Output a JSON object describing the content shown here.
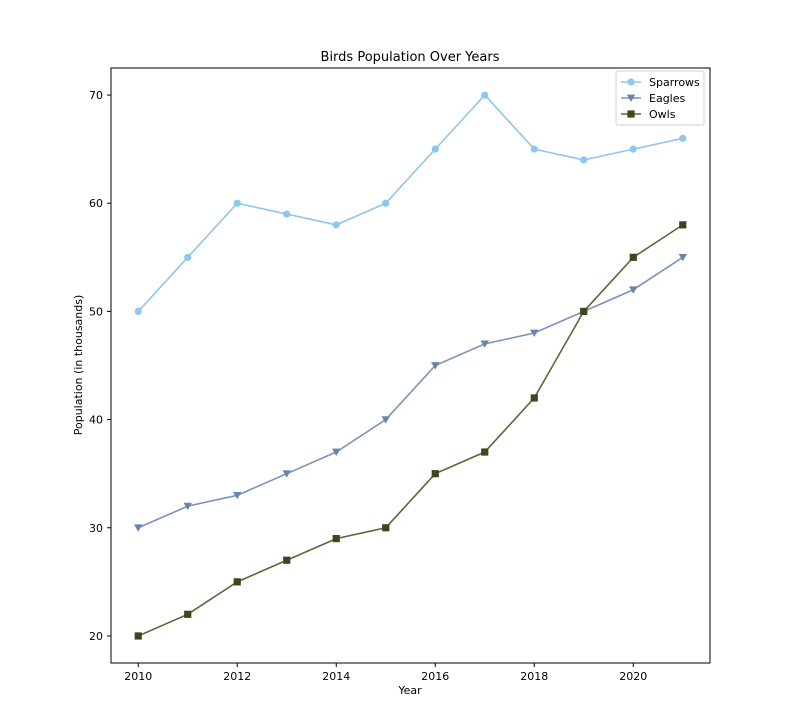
{
  "chart_data": {
    "type": "line",
    "title": "Birds Population Over Years",
    "xlabel": "Year",
    "ylabel": "Population (in thousands)",
    "x": [
      2010,
      2011,
      2012,
      2013,
      2014,
      2015,
      2016,
      2017,
      2018,
      2019,
      2020,
      2021
    ],
    "xlim": [
      2009.45,
      2021.55
    ],
    "ylim": [
      17.5,
      72.5
    ],
    "xticks": [
      2010,
      2012,
      2014,
      2016,
      2018,
      2020
    ],
    "yticks": [
      20,
      30,
      40,
      50,
      60,
      70
    ],
    "grid": false,
    "legend_position": "top-right",
    "series": [
      {
        "name": "Sparrows",
        "values": [
          50,
          55,
          60,
          59,
          58,
          60,
          65,
          70,
          65,
          64,
          65,
          66
        ],
        "color": "#8fc6ec",
        "marker": "circle"
      },
      {
        "name": "Eagles",
        "values": [
          30,
          32,
          33,
          35,
          37,
          40,
          45,
          47,
          48,
          50,
          52,
          55
        ],
        "color": "#7a93b8",
        "marker_color": "#6784ad",
        "marker": "triangle-down"
      },
      {
        "name": "Owls",
        "values": [
          20,
          22,
          25,
          27,
          29,
          30,
          35,
          37,
          42,
          50,
          55,
          58
        ],
        "color": "#5d6637",
        "marker_color": "#3c4620",
        "marker": "square"
      }
    ]
  }
}
